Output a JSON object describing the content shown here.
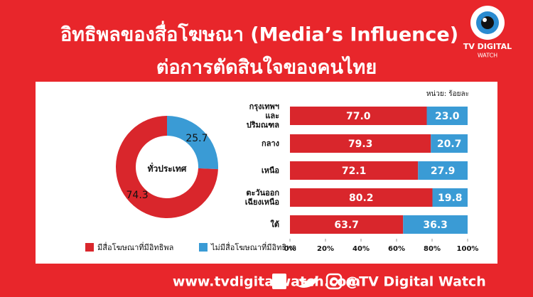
{
  "header": {
    "title_line1": "อิทธิพลของสื่อโฆษณา (Media’s Influence)",
    "title_line2": "ต่อการตัดสินใจของคนไทย"
  },
  "logo": {
    "line1": "TV DIGITAL",
    "line2": "WATCH"
  },
  "chart_data": [
    {
      "type": "pie",
      "donut": true,
      "center_label": "ทั่วประเทศ",
      "values": [
        25.7,
        74.3
      ],
      "colors": [
        "#3a9bd5",
        "#d9262c"
      ]
    },
    {
      "type": "bar",
      "orientation": "horizontal",
      "stacked": true,
      "unit_note": "หน่วย: ร้อยละ",
      "categories": [
        "กรุงเทพฯ\nและ\nปริมณฑล",
        "กลาง",
        "เหนือ",
        "ตะวันออก\nเฉียงเหนือ",
        "ใต้"
      ],
      "series": [
        {
          "name": "มีสื่อโฆษณาที่มีอิทธิพล",
          "color": "#d9262c",
          "values": [
            77.0,
            79.3,
            72.1,
            80.2,
            63.7
          ],
          "value_labels": [
            "77.0",
            "79.3",
            "72.1",
            "80.2",
            "63.7"
          ]
        },
        {
          "name": "ไม่มีสื่อโฆษณาที่มีอิทธิพล",
          "color": "#3a9bd5",
          "values": [
            23.0,
            20.7,
            27.9,
            19.8,
            36.3
          ],
          "value_labels": [
            "23.0",
            "20.7",
            "27.9",
            "19.8",
            "36.3"
          ]
        }
      ],
      "xlim": [
        0,
        100
      ],
      "xticks": [
        {
          "value": 0,
          "label": "0%"
        },
        {
          "value": 20,
          "label": "20%"
        },
        {
          "value": 40,
          "label": "40%"
        },
        {
          "value": 60,
          "label": "60%"
        },
        {
          "value": 80,
          "label": "80%"
        },
        {
          "value": 100,
          "label": "100%"
        }
      ]
    }
  ],
  "footer": {
    "url": "www.tvdigitalwatch.com",
    "social": "@TV Digital Watch"
  }
}
